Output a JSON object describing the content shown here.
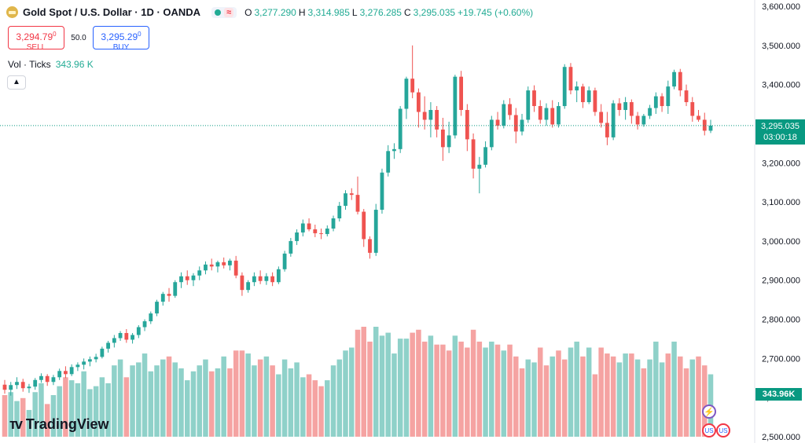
{
  "header": {
    "title": "Gold Spot / U.S. Dollar · 1D · OANDA",
    "icon": "gold-coin-icon",
    "status_mark": "≈",
    "ohlc": [
      {
        "k": "O",
        "v": "3,277.290"
      },
      {
        "k": "H",
        "v": "3,314.985"
      },
      {
        "k": "L",
        "v": "3,276.285"
      },
      {
        "k": "C",
        "v": "3,295.035"
      },
      {
        "k": "",
        "v": "+19.745 (+0.60%)"
      }
    ]
  },
  "trade": {
    "sell_price": "3,294.79",
    "sell_sup": "0",
    "sell_label": "SELL",
    "spread": "50.0",
    "buy_price": "3,295.29",
    "buy_sup": "0",
    "buy_label": "BUY"
  },
  "volume_legend": {
    "label": "Vol · Ticks",
    "value": "343.96 K"
  },
  "price_label": {
    "price": "3,295.035",
    "countdown": "03:00:18"
  },
  "volume_label": "343.96K",
  "logo": {
    "text": "TradingView"
  },
  "events": {
    "e1": "⚡",
    "e2": "US",
    "e3": "US"
  },
  "colors": {
    "up": "#26a69a",
    "down": "#ef5350",
    "vol_up": "#8fd1c9",
    "vol_down": "#f5a3a2",
    "last_line": "#089981"
  },
  "chart_data": {
    "type": "candlestick",
    "title": "Gold Spot / U.S. Dollar · 1D · OANDA",
    "yticks": [
      "3,600.000",
      "3,500.000",
      "3,400.000",
      "3,300.000",
      "3,200.000",
      "3,100.000",
      "3,000.000",
      "2,900.000",
      "2,800.000",
      "2,700.000",
      "2,600.000",
      "2,500.000"
    ],
    "ylim": [
      2500,
      3600
    ],
    "last_price": 3295.035,
    "vol_max": 370,
    "candles": [
      [
        2633,
        2645,
        2610,
        2620
      ],
      [
        2620,
        2640,
        2605,
        2632
      ],
      [
        2632,
        2652,
        2622,
        2640
      ],
      [
        2640,
        2648,
        2615,
        2624
      ],
      [
        2624,
        2635,
        2612,
        2628
      ],
      [
        2628,
        2650,
        2620,
        2645
      ],
      [
        2645,
        2662,
        2638,
        2655
      ],
      [
        2655,
        2660,
        2630,
        2640
      ],
      [
        2640,
        2658,
        2632,
        2652
      ],
      [
        2652,
        2674,
        2645,
        2668
      ],
      [
        2668,
        2680,
        2650,
        2660
      ],
      [
        2660,
        2685,
        2655,
        2678
      ],
      [
        2678,
        2690,
        2668,
        2684
      ],
      [
        2684,
        2700,
        2672,
        2692
      ],
      [
        2692,
        2705,
        2680,
        2698
      ],
      [
        2698,
        2712,
        2690,
        2704
      ],
      [
        2704,
        2730,
        2700,
        2725
      ],
      [
        2725,
        2745,
        2715,
        2740
      ],
      [
        2740,
        2760,
        2728,
        2752
      ],
      [
        2752,
        2770,
        2745,
        2765
      ],
      [
        2765,
        2775,
        2740,
        2748
      ],
      [
        2748,
        2765,
        2738,
        2760
      ],
      [
        2760,
        2785,
        2752,
        2780
      ],
      [
        2780,
        2800,
        2770,
        2795
      ],
      [
        2795,
        2820,
        2788,
        2815
      ],
      [
        2815,
        2850,
        2808,
        2845
      ],
      [
        2845,
        2870,
        2835,
        2865
      ],
      [
        2865,
        2880,
        2845,
        2860
      ],
      [
        2860,
        2900,
        2855,
        2895
      ],
      [
        2895,
        2920,
        2880,
        2910
      ],
      [
        2910,
        2925,
        2888,
        2900
      ],
      [
        2900,
        2918,
        2885,
        2912
      ],
      [
        2912,
        2935,
        2900,
        2925
      ],
      [
        2925,
        2948,
        2915,
        2940
      ],
      [
        2940,
        2955,
        2925,
        2935
      ],
      [
        2935,
        2950,
        2920,
        2946
      ],
      [
        2946,
        2958,
        2930,
        2938
      ],
      [
        2938,
        2955,
        2925,
        2950
      ],
      [
        2950,
        2962,
        2905,
        2912
      ],
      [
        2912,
        2920,
        2860,
        2875
      ],
      [
        2875,
        2900,
        2868,
        2895
      ],
      [
        2895,
        2920,
        2885,
        2910
      ],
      [
        2910,
        2925,
        2890,
        2898
      ],
      [
        2898,
        2918,
        2888,
        2910
      ],
      [
        2910,
        2920,
        2885,
        2895
      ],
      [
        2895,
        2935,
        2890,
        2928
      ],
      [
        2928,
        2975,
        2922,
        2968
      ],
      [
        2968,
        3008,
        2960,
        3000
      ],
      [
        3000,
        3030,
        2990,
        3022
      ],
      [
        3022,
        3055,
        3012,
        3045
      ],
      [
        3045,
        3058,
        3025,
        3030
      ],
      [
        3030,
        3042,
        3010,
        3020
      ],
      [
        3020,
        3032,
        3005,
        3018
      ],
      [
        3018,
        3040,
        3012,
        3032
      ],
      [
        3032,
        3065,
        3025,
        3058
      ],
      [
        3058,
        3100,
        3050,
        3090
      ],
      [
        3090,
        3130,
        3080,
        3122
      ],
      [
        3122,
        3135,
        3105,
        3118
      ],
      [
        3118,
        3165,
        3068,
        3075
      ],
      [
        3075,
        3082,
        2985,
        3005
      ],
      [
        3005,
        3012,
        2955,
        2970
      ],
      [
        2970,
        3095,
        2962,
        3080
      ],
      [
        3080,
        3185,
        3070,
        3175
      ],
      [
        3175,
        3245,
        3165,
        3230
      ],
      [
        3230,
        3250,
        3210,
        3235
      ],
      [
        3235,
        3345,
        3225,
        3338
      ],
      [
        3338,
        3420,
        3312,
        3415
      ],
      [
        3415,
        3500,
        3365,
        3380
      ],
      [
        3380,
        3390,
        3290,
        3330
      ],
      [
        3330,
        3370,
        3285,
        3310
      ],
      [
        3310,
        3355,
        3265,
        3335
      ],
      [
        3335,
        3345,
        3265,
        3285
      ],
      [
        3285,
        3315,
        3205,
        3240
      ],
      [
        3240,
        3305,
        3225,
        3270
      ],
      [
        3270,
        3425,
        3262,
        3420
      ],
      [
        3420,
        3435,
        3320,
        3335
      ],
      [
        3335,
        3350,
        3230,
        3260
      ],
      [
        3260,
        3275,
        3160,
        3185
      ],
      [
        3185,
        3215,
        3122,
        3195
      ],
      [
        3195,
        3255,
        3188,
        3240
      ],
      [
        3240,
        3320,
        3232,
        3310
      ],
      [
        3310,
        3330,
        3285,
        3295
      ],
      [
        3295,
        3360,
        3288,
        3350
      ],
      [
        3350,
        3365,
        3310,
        3322
      ],
      [
        3322,
        3340,
        3250,
        3280
      ],
      [
        3280,
        3325,
        3270,
        3310
      ],
      [
        3310,
        3395,
        3302,
        3385
      ],
      [
        3385,
        3398,
        3330,
        3345
      ],
      [
        3345,
        3360,
        3300,
        3310
      ],
      [
        3310,
        3352,
        3295,
        3340
      ],
      [
        3340,
        3360,
        3290,
        3298
      ],
      [
        3298,
        3355,
        3290,
        3345
      ],
      [
        3345,
        3452,
        3338,
        3445
      ],
      [
        3445,
        3455,
        3375,
        3385
      ],
      [
        3385,
        3408,
        3355,
        3395
      ],
      [
        3395,
        3402,
        3340,
        3355
      ],
      [
        3355,
        3395,
        3350,
        3385
      ],
      [
        3385,
        3392,
        3320,
        3330
      ],
      [
        3330,
        3350,
        3290,
        3302
      ],
      [
        3302,
        3330,
        3245,
        3265
      ],
      [
        3265,
        3360,
        3258,
        3352
      ],
      [
        3352,
        3365,
        3320,
        3335
      ],
      [
        3335,
        3368,
        3310,
        3355
      ],
      [
        3355,
        3362,
        3300,
        3320
      ],
      [
        3320,
        3330,
        3285,
        3298
      ],
      [
        3298,
        3325,
        3292,
        3320
      ],
      [
        3320,
        3348,
        3312,
        3340
      ],
      [
        3340,
        3380,
        3325,
        3370
      ],
      [
        3370,
        3378,
        3330,
        3345
      ],
      [
        3345,
        3410,
        3325,
        3395
      ],
      [
        3395,
        3438,
        3388,
        3432
      ],
      [
        3432,
        3440,
        3370,
        3385
      ],
      [
        3385,
        3400,
        3345,
        3355
      ],
      [
        3355,
        3368,
        3305,
        3320
      ],
      [
        3320,
        3335,
        3305,
        3310
      ],
      [
        3310,
        3328,
        3270,
        3282
      ],
      [
        3282,
        3310,
        3276,
        3295
      ]
    ],
    "volumes": [
      [
        140,
        0
      ],
      [
        150,
        1
      ],
      [
        120,
        1
      ],
      [
        130,
        0
      ],
      [
        90,
        1
      ],
      [
        150,
        1
      ],
      [
        180,
        1
      ],
      [
        110,
        0
      ],
      [
        140,
        1
      ],
      [
        170,
        1
      ],
      [
        200,
        0
      ],
      [
        190,
        1
      ],
      [
        180,
        1
      ],
      [
        220,
        1
      ],
      [
        160,
        1
      ],
      [
        170,
        1
      ],
      [
        200,
        1
      ],
      [
        180,
        1
      ],
      [
        240,
        1
      ],
      [
        260,
        1
      ],
      [
        200,
        0
      ],
      [
        240,
        1
      ],
      [
        250,
        1
      ],
      [
        280,
        1
      ],
      [
        220,
        1
      ],
      [
        240,
        1
      ],
      [
        260,
        1
      ],
      [
        270,
        0
      ],
      [
        250,
        1
      ],
      [
        230,
        1
      ],
      [
        190,
        1
      ],
      [
        220,
        1
      ],
      [
        240,
        1
      ],
      [
        260,
        1
      ],
      [
        220,
        0
      ],
      [
        230,
        1
      ],
      [
        270,
        1
      ],
      [
        230,
        0
      ],
      [
        290,
        0
      ],
      [
        290,
        0
      ],
      [
        280,
        1
      ],
      [
        240,
        1
      ],
      [
        260,
        0
      ],
      [
        270,
        1
      ],
      [
        240,
        0
      ],
      [
        210,
        1
      ],
      [
        260,
        1
      ],
      [
        230,
        1
      ],
      [
        250,
        1
      ],
      [
        200,
        1
      ],
      [
        210,
        0
      ],
      [
        190,
        0
      ],
      [
        170,
        0
      ],
      [
        190,
        1
      ],
      [
        240,
        1
      ],
      [
        260,
        1
      ],
      [
        290,
        1
      ],
      [
        300,
        1
      ],
      [
        360,
        0
      ],
      [
        370,
        0
      ],
      [
        320,
        0
      ],
      [
        370,
        1
      ],
      [
        340,
        1
      ],
      [
        350,
        1
      ],
      [
        280,
        1
      ],
      [
        330,
        1
      ],
      [
        330,
        1
      ],
      [
        350,
        0
      ],
      [
        360,
        0
      ],
      [
        320,
        0
      ],
      [
        340,
        1
      ],
      [
        310,
        0
      ],
      [
        310,
        0
      ],
      [
        290,
        0
      ],
      [
        340,
        1
      ],
      [
        320,
        0
      ],
      [
        300,
        0
      ],
      [
        360,
        0
      ],
      [
        320,
        0
      ],
      [
        300,
        1
      ],
      [
        320,
        1
      ],
      [
        310,
        0
      ],
      [
        290,
        1
      ],
      [
        310,
        0
      ],
      [
        270,
        0
      ],
      [
        230,
        0
      ],
      [
        260,
        1
      ],
      [
        250,
        1
      ],
      [
        300,
        0
      ],
      [
        240,
        0
      ],
      [
        270,
        1
      ],
      [
        290,
        0
      ],
      [
        260,
        0
      ],
      [
        300,
        1
      ],
      [
        320,
        1
      ],
      [
        270,
        0
      ],
      [
        300,
        1
      ],
      [
        210,
        0
      ],
      [
        300,
        0
      ],
      [
        280,
        0
      ],
      [
        270,
        0
      ],
      [
        250,
        1
      ],
      [
        280,
        1
      ],
      [
        280,
        0
      ],
      [
        260,
        1
      ],
      [
        230,
        0
      ],
      [
        260,
        1
      ],
      [
        320,
        1
      ],
      [
        250,
        1
      ],
      [
        280,
        0
      ],
      [
        320,
        1
      ],
      [
        270,
        0
      ],
      [
        230,
        0
      ],
      [
        260,
        1
      ],
      [
        270,
        0
      ],
      [
        240,
        0
      ],
      [
        210,
        1
      ]
    ]
  }
}
